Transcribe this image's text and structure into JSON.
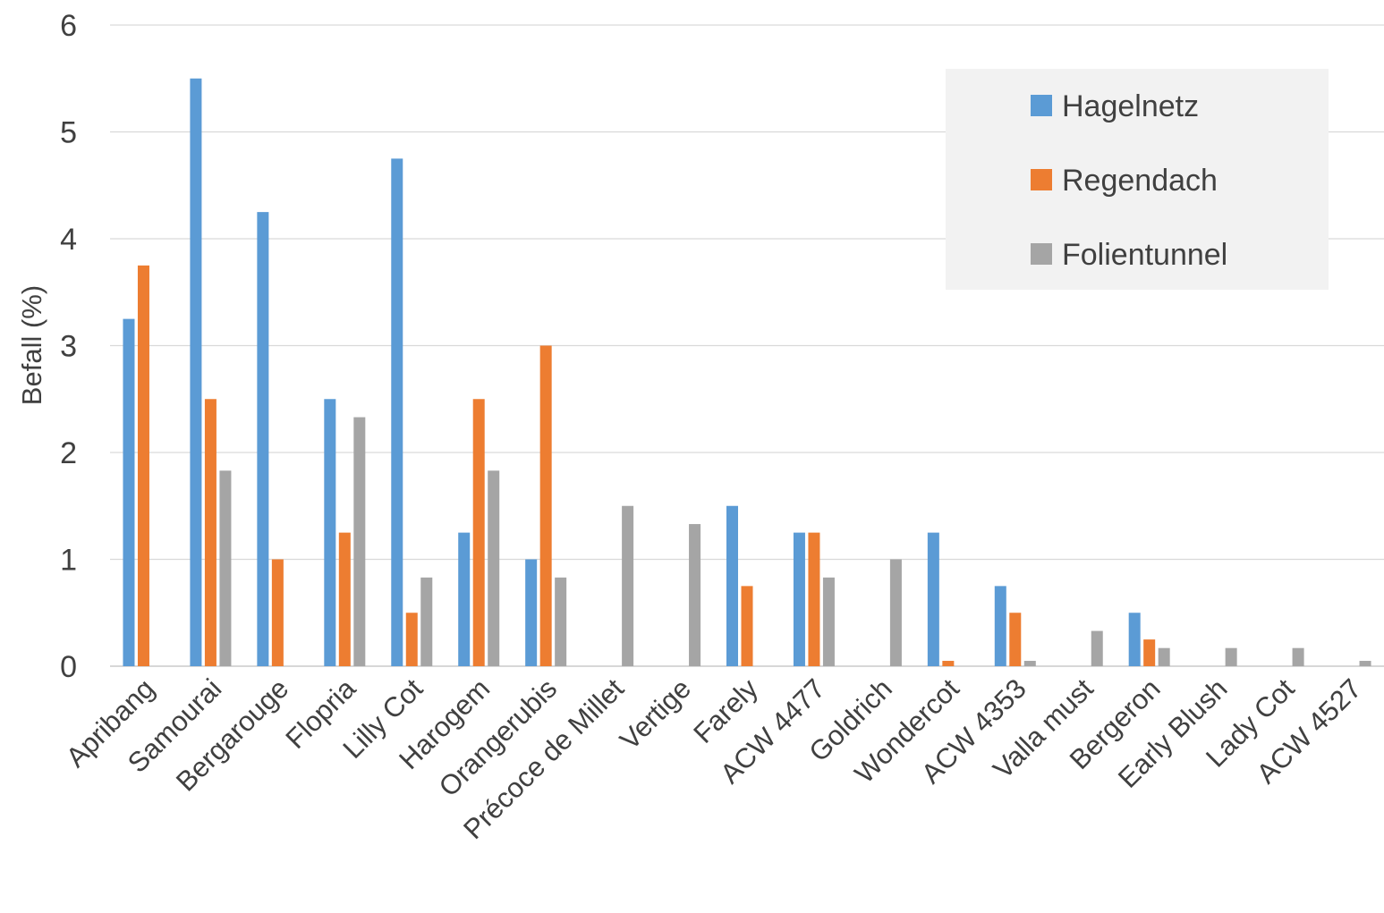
{
  "chart_data": {
    "type": "bar",
    "title": "",
    "xlabel": "",
    "ylabel": "Befall (%)",
    "ylim": [
      0,
      6
    ],
    "yticks": [
      0,
      1,
      2,
      3,
      4,
      5,
      6
    ],
    "grid": true,
    "legend_position": "top-right",
    "categories": [
      "Apribang",
      "Samourai",
      "Bergarouge",
      "Flopria",
      "Lilly Cot",
      "Harogem",
      "Orangerubis",
      "Précoce de Millet",
      "Vertige",
      "Farely",
      "ACW 4477",
      "Goldrich",
      "Wondercot",
      "ACW 4353",
      "Valla must",
      "Bergeron",
      "Early Blush",
      "Lady Cot",
      "ACW 4527"
    ],
    "series": [
      {
        "name": "Hagelnetz",
        "color": "#5b9bd5",
        "values": [
          3.25,
          5.5,
          4.25,
          2.5,
          4.75,
          1.25,
          1.0,
          0,
          0,
          1.5,
          1.25,
          0,
          1.25,
          0.75,
          0,
          0.5,
          0,
          0,
          0
        ]
      },
      {
        "name": "Regendach",
        "color": "#ed7d31",
        "values": [
          3.75,
          2.5,
          1.0,
          1.25,
          0.5,
          2.5,
          3.0,
          0,
          0,
          0.75,
          1.25,
          0,
          0.05,
          0.5,
          0,
          0.25,
          0,
          0,
          0
        ]
      },
      {
        "name": "Folientunnel",
        "color": "#a5a5a5",
        "values": [
          0,
          1.83,
          0,
          2.33,
          0.83,
          1.83,
          0.83,
          1.5,
          1.33,
          0,
          0.83,
          1.0,
          0,
          0.05,
          0.33,
          0.17,
          0.17,
          0.17,
          0.05
        ]
      }
    ]
  },
  "colors": {
    "grid": "#d9d9d9",
    "legend_background": "#f2f2f2",
    "text": "#404040"
  }
}
